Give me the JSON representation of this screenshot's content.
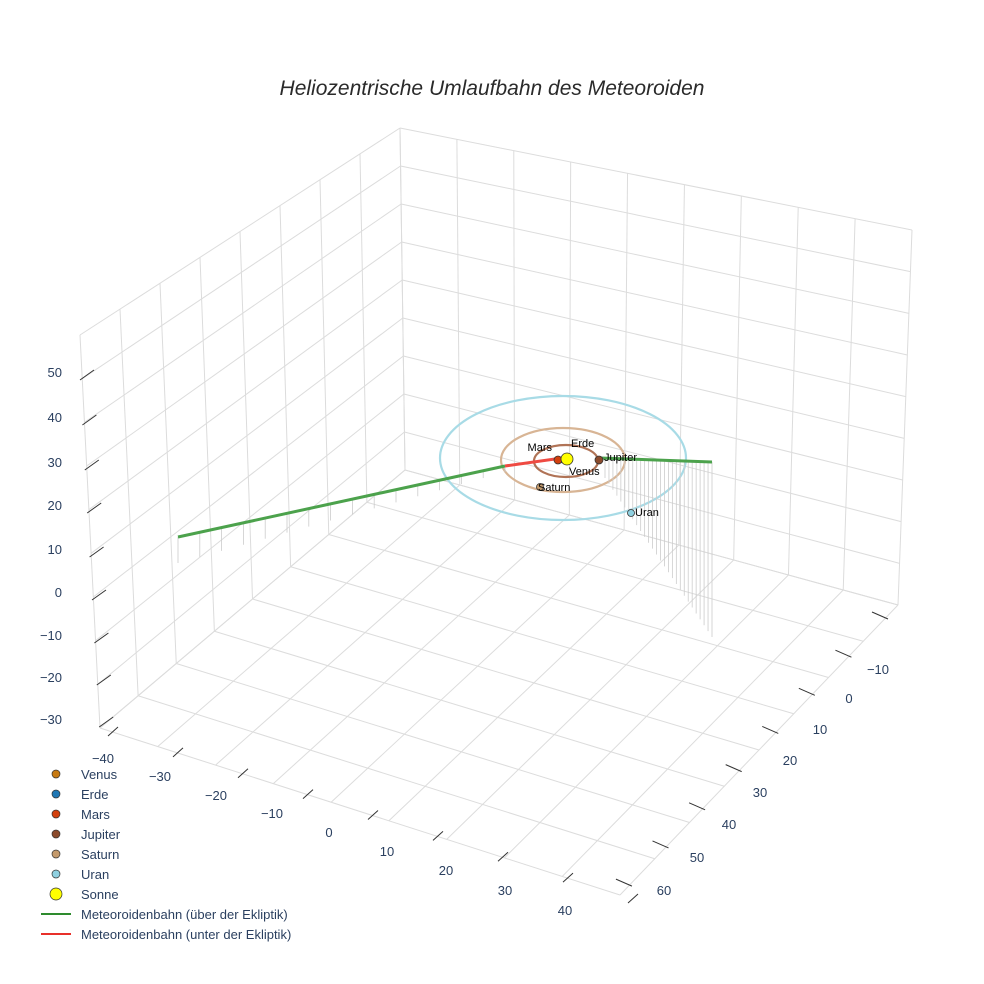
{
  "chart_data": {
    "type": "scatter3d",
    "title": "Heliozentrische Umlaufbahn des Meteoroiden",
    "x_axis": {
      "ticks": [
        "−40",
        "−30",
        "−20",
        "−10",
        "0",
        "10",
        "20",
        "30",
        "40"
      ],
      "range": [
        -45,
        45
      ]
    },
    "y_axis": {
      "ticks": [
        "−10",
        "0",
        "10",
        "20",
        "30",
        "40",
        "50",
        "60"
      ],
      "range": [
        -15,
        65
      ]
    },
    "z_axis": {
      "ticks": [
        "50",
        "40",
        "30",
        "20",
        "10",
        "0",
        "−10",
        "−20",
        "−30"
      ],
      "range": [
        -30,
        55
      ]
    },
    "grid": true,
    "legend_position": "bottom-left",
    "planets": [
      {
        "name": "Venus",
        "color": "#c77a12"
      },
      {
        "name": "Erde",
        "color": "#1f77b4"
      },
      {
        "name": "Mars",
        "color": "#d2400e"
      },
      {
        "name": "Jupiter",
        "color": "#8b4a2b"
      },
      {
        "name": "Saturn",
        "color": "#c49a6c"
      },
      {
        "name": "Uran",
        "color": "#8fd0e0"
      },
      {
        "name": "Sonne",
        "color": "#ffff00"
      }
    ],
    "orbits": [
      {
        "name": "Jupiter",
        "color": "#b07356"
      },
      {
        "name": "Saturn",
        "color": "#d8b595"
      },
      {
        "name": "Uran",
        "color": "#a8dbe6"
      }
    ],
    "series": [
      {
        "name": "Meteoroidenbahn (über der Ekliptik)",
        "color": "#2e8b2e"
      },
      {
        "name": "Meteoroidenbahn (unter der Ekliptik)",
        "color": "#e8302a"
      }
    ]
  }
}
